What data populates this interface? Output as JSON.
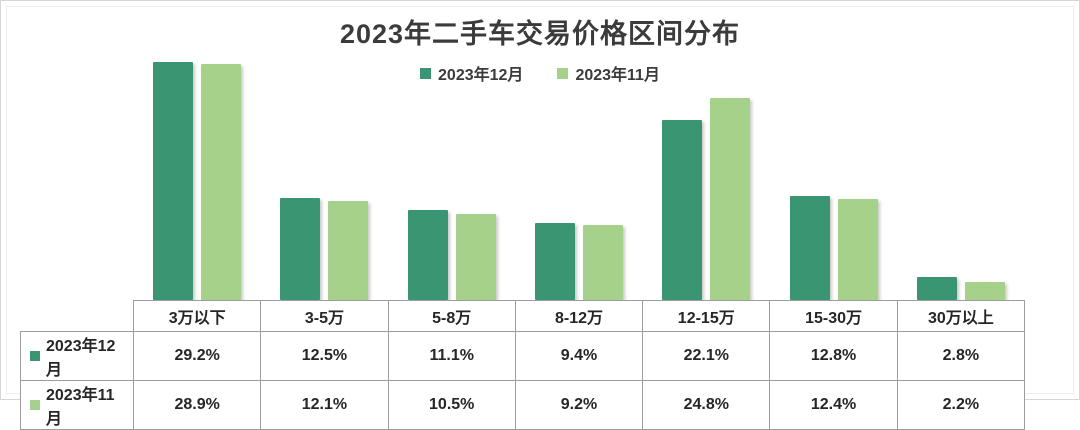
{
  "chart_data": {
    "type": "bar",
    "title": "2023年二手车交易价格区间分布",
    "categories": [
      "3万以下",
      "3-5万",
      "5-8万",
      "8-12万",
      "12-15万",
      "15-30万",
      "30万以上"
    ],
    "series": [
      {
        "name": "2023年12月",
        "color": "#3A9672",
        "values": [
          29.2,
          12.5,
          11.1,
          9.4,
          22.1,
          12.8,
          2.8
        ]
      },
      {
        "name": "2023年11月",
        "color": "#A6D18B",
        "values": [
          28.9,
          12.1,
          10.5,
          9.2,
          24.8,
          12.4,
          2.2
        ]
      }
    ],
    "value_suffix": "%",
    "xlabel": "",
    "ylabel": "",
    "ylim": [
      0,
      30
    ],
    "grid": false,
    "legend_position": "top",
    "data_table_attached": true
  }
}
